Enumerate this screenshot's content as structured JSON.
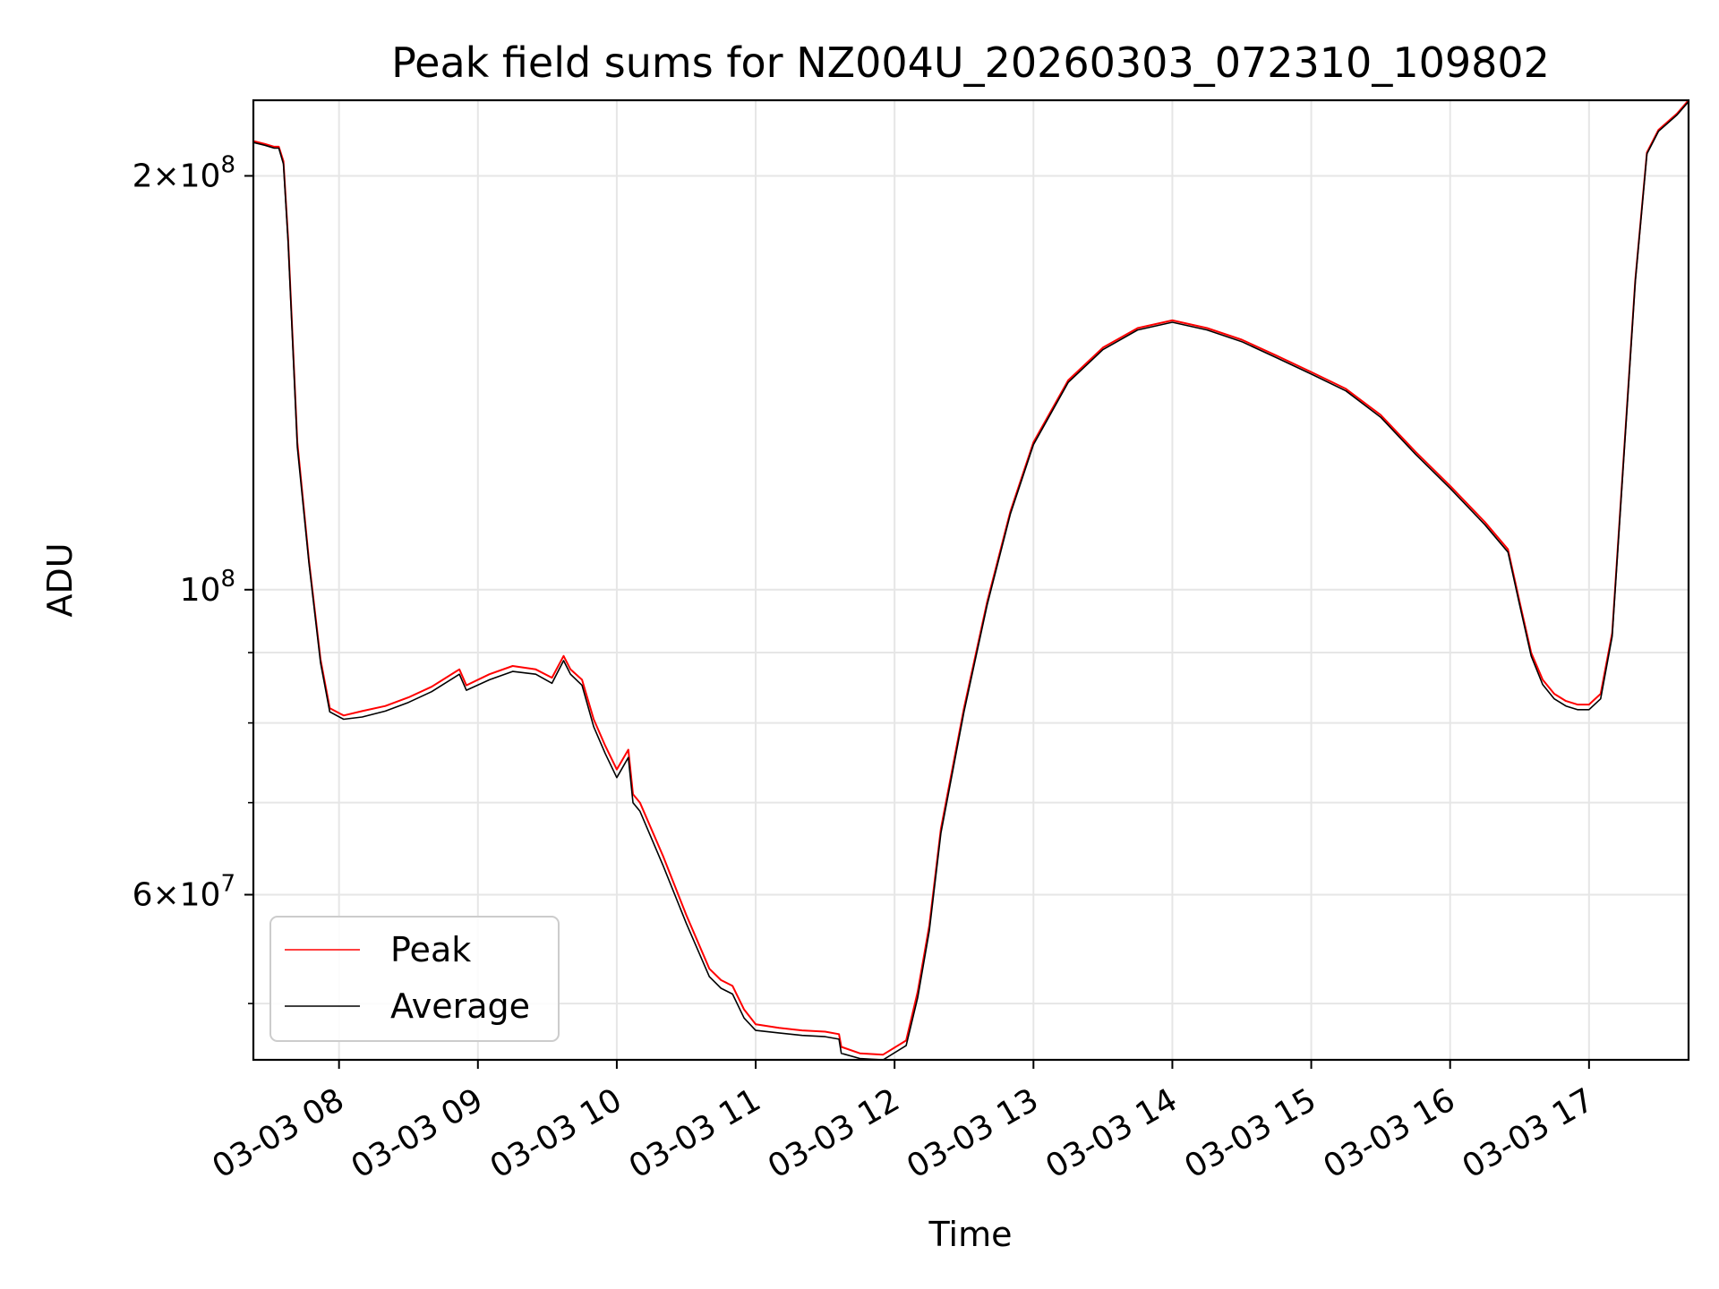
{
  "chart_data": {
    "type": "line",
    "title": "Peak field sums for NZ004U_20260303_072310_109802",
    "xlabel": "Time",
    "ylabel": "ADU",
    "yscale": "log",
    "grid": true,
    "legend_position": "lower-left",
    "xlim": [
      "2026-03-03 07:23",
      "2026-03-03 17:43"
    ],
    "ylim": [
      45500000,
      227000000
    ],
    "x_ticks": [
      {
        "value": "2026-03-03 08:00",
        "label": "03-03 08"
      },
      {
        "value": "2026-03-03 09:00",
        "label": "03-03 09"
      },
      {
        "value": "2026-03-03 10:00",
        "label": "03-03 10"
      },
      {
        "value": "2026-03-03 11:00",
        "label": "03-03 11"
      },
      {
        "value": "2026-03-03 12:00",
        "label": "03-03 12"
      },
      {
        "value": "2026-03-03 13:00",
        "label": "03-03 13"
      },
      {
        "value": "2026-03-03 14:00",
        "label": "03-03 14"
      },
      {
        "value": "2026-03-03 15:00",
        "label": "03-03 15"
      },
      {
        "value": "2026-03-03 16:00",
        "label": "03-03 16"
      },
      {
        "value": "2026-03-03 17:00",
        "label": "03-03 17"
      }
    ],
    "y_major_ticks": [
      {
        "value": 60000000,
        "base": "6",
        "exp": "7"
      },
      {
        "value": 100000000,
        "base": "",
        "exp": "8"
      },
      {
        "value": 200000000,
        "base": "2",
        "exp": "8"
      }
    ],
    "y_minor_ticks": [
      50000000,
      70000000,
      80000000,
      90000000
    ],
    "series": [
      {
        "name": "Peak",
        "color": "#ff0000",
        "x": [
          "2026-03-03 07:23",
          "2026-03-03 07:28",
          "2026-03-03 07:32",
          "2026-03-03 07:34",
          "2026-03-03 07:36",
          "2026-03-03 07:38",
          "2026-03-03 07:42",
          "2026-03-03 07:47",
          "2026-03-03 07:52",
          "2026-03-03 07:56",
          "2026-03-03 08:02",
          "2026-03-03 08:10",
          "2026-03-03 08:20",
          "2026-03-03 08:30",
          "2026-03-03 08:40",
          "2026-03-03 08:52",
          "2026-03-03 08:55",
          "2026-03-03 09:05",
          "2026-03-03 09:15",
          "2026-03-03 09:25",
          "2026-03-03 09:32",
          "2026-03-03 09:37",
          "2026-03-03 09:40",
          "2026-03-03 09:45",
          "2026-03-03 09:50",
          "2026-03-03 09:55",
          "2026-03-03 10:00",
          "2026-03-03 10:05",
          "2026-03-03 10:07",
          "2026-03-03 10:10",
          "2026-03-03 10:20",
          "2026-03-03 10:30",
          "2026-03-03 10:40",
          "2026-03-03 10:45",
          "2026-03-03 10:50",
          "2026-03-03 10:55",
          "2026-03-03 11:00",
          "2026-03-03 11:10",
          "2026-03-03 11:20",
          "2026-03-03 11:30",
          "2026-03-03 11:36",
          "2026-03-03 11:37",
          "2026-03-03 11:45",
          "2026-03-03 11:55",
          "2026-03-03 12:05",
          "2026-03-03 12:10",
          "2026-03-03 12:15",
          "2026-03-03 12:20",
          "2026-03-03 12:30",
          "2026-03-03 12:40",
          "2026-03-03 12:50",
          "2026-03-03 13:00",
          "2026-03-03 13:15",
          "2026-03-03 13:30",
          "2026-03-03 13:45",
          "2026-03-03 14:00",
          "2026-03-03 14:15",
          "2026-03-03 14:30",
          "2026-03-03 14:45",
          "2026-03-03 15:00",
          "2026-03-03 15:15",
          "2026-03-03 15:30",
          "2026-03-03 15:45",
          "2026-03-03 16:00",
          "2026-03-03 16:15",
          "2026-03-03 16:25",
          "2026-03-03 16:30",
          "2026-03-03 16:35",
          "2026-03-03 16:40",
          "2026-03-03 16:45",
          "2026-03-03 16:50",
          "2026-03-03 16:55",
          "2026-03-03 17:00",
          "2026-03-03 17:05",
          "2026-03-03 17:10",
          "2026-03-03 17:15",
          "2026-03-03 17:20",
          "2026-03-03 17:25",
          "2026-03-03 17:30",
          "2026-03-03 17:38",
          "2026-03-03 17:43"
        ],
        "y": [
          212000000,
          211000000,
          210000000,
          210000000,
          205000000,
          180000000,
          128000000,
          105000000,
          89000000,
          82000000,
          81000000,
          81600000,
          82300000,
          83500000,
          85000000,
          87500000,
          85200000,
          86800000,
          88000000,
          87500000,
          86300000,
          89500000,
          87500000,
          86000000,
          80500000,
          77000000,
          74000000,
          76500000,
          71000000,
          70000000,
          64000000,
          58000000,
          53000000,
          52000000,
          51500000,
          49500000,
          48300000,
          48000000,
          47800000,
          47700000,
          47500000,
          46500000,
          46000000,
          45900000,
          47000000,
          51000000,
          57000000,
          67000000,
          82000000,
          98000000,
          114000000,
          128000000,
          142000000,
          150000000,
          155000000,
          157000000,
          155000000,
          152000000,
          148000000,
          144000000,
          140000000,
          134000000,
          126000000,
          119000000,
          112000000,
          107000000,
          98000000,
          90000000,
          86000000,
          84000000,
          83000000,
          82500000,
          82500000,
          84000000,
          93000000,
          125000000,
          168000000,
          208000000,
          216000000,
          222000000,
          227000000
        ]
      },
      {
        "name": "Average",
        "color": "#000000",
        "x": [
          "2026-03-03 07:23",
          "2026-03-03 07:28",
          "2026-03-03 07:32",
          "2026-03-03 07:34",
          "2026-03-03 07:36",
          "2026-03-03 07:38",
          "2026-03-03 07:42",
          "2026-03-03 07:47",
          "2026-03-03 07:52",
          "2026-03-03 07:56",
          "2026-03-03 08:02",
          "2026-03-03 08:10",
          "2026-03-03 08:20",
          "2026-03-03 08:30",
          "2026-03-03 08:40",
          "2026-03-03 08:52",
          "2026-03-03 08:55",
          "2026-03-03 09:05",
          "2026-03-03 09:15",
          "2026-03-03 09:25",
          "2026-03-03 09:32",
          "2026-03-03 09:37",
          "2026-03-03 09:40",
          "2026-03-03 09:45",
          "2026-03-03 09:50",
          "2026-03-03 09:55",
          "2026-03-03 10:00",
          "2026-03-03 10:05",
          "2026-03-03 10:07",
          "2026-03-03 10:10",
          "2026-03-03 10:20",
          "2026-03-03 10:30",
          "2026-03-03 10:40",
          "2026-03-03 10:45",
          "2026-03-03 10:50",
          "2026-03-03 10:55",
          "2026-03-03 11:00",
          "2026-03-03 11:10",
          "2026-03-03 11:20",
          "2026-03-03 11:30",
          "2026-03-03 11:36",
          "2026-03-03 11:37",
          "2026-03-03 11:45",
          "2026-03-03 11:55",
          "2026-03-03 12:05",
          "2026-03-03 12:10",
          "2026-03-03 12:15",
          "2026-03-03 12:20",
          "2026-03-03 12:30",
          "2026-03-03 12:40",
          "2026-03-03 12:50",
          "2026-03-03 13:00",
          "2026-03-03 13:15",
          "2026-03-03 13:30",
          "2026-03-03 13:45",
          "2026-03-03 14:00",
          "2026-03-03 14:15",
          "2026-03-03 14:30",
          "2026-03-03 14:45",
          "2026-03-03 15:00",
          "2026-03-03 15:15",
          "2026-03-03 15:30",
          "2026-03-03 15:45",
          "2026-03-03 16:00",
          "2026-03-03 16:15",
          "2026-03-03 16:25",
          "2026-03-03 16:30",
          "2026-03-03 16:35",
          "2026-03-03 16:40",
          "2026-03-03 16:45",
          "2026-03-03 16:50",
          "2026-03-03 16:55",
          "2026-03-03 17:00",
          "2026-03-03 17:05",
          "2026-03-03 17:10",
          "2026-03-03 17:15",
          "2026-03-03 17:20",
          "2026-03-03 17:25",
          "2026-03-03 17:30",
          "2026-03-03 17:38",
          "2026-03-03 17:43"
        ],
        "y": [
          211500000,
          210500000,
          209500000,
          209500000,
          204000000,
          179000000,
          127000000,
          104500000,
          88500000,
          81500000,
          80500000,
          80800000,
          81600000,
          82800000,
          84300000,
          86800000,
          84500000,
          86000000,
          87200000,
          86800000,
          85500000,
          88800000,
          86800000,
          85200000,
          79500000,
          76000000,
          73000000,
          75500000,
          70000000,
          69000000,
          63000000,
          57200000,
          52300000,
          51300000,
          50800000,
          48800000,
          47800000,
          47600000,
          47400000,
          47300000,
          47100000,
          46000000,
          45600000,
          45500000,
          46600000,
          50500000,
          56500000,
          66500000,
          81500000,
          97500000,
          113500000,
          127500000,
          141500000,
          149500000,
          154500000,
          156500000,
          154500000,
          151500000,
          147500000,
          143500000,
          139500000,
          133500000,
          125500000,
          118500000,
          111500000,
          106500000,
          97500000,
          89500000,
          85300000,
          83300000,
          82300000,
          81800000,
          81800000,
          83300000,
          92500000,
          124500000,
          167500000,
          207500000,
          215500000,
          221500000,
          226500000
        ]
      }
    ]
  }
}
